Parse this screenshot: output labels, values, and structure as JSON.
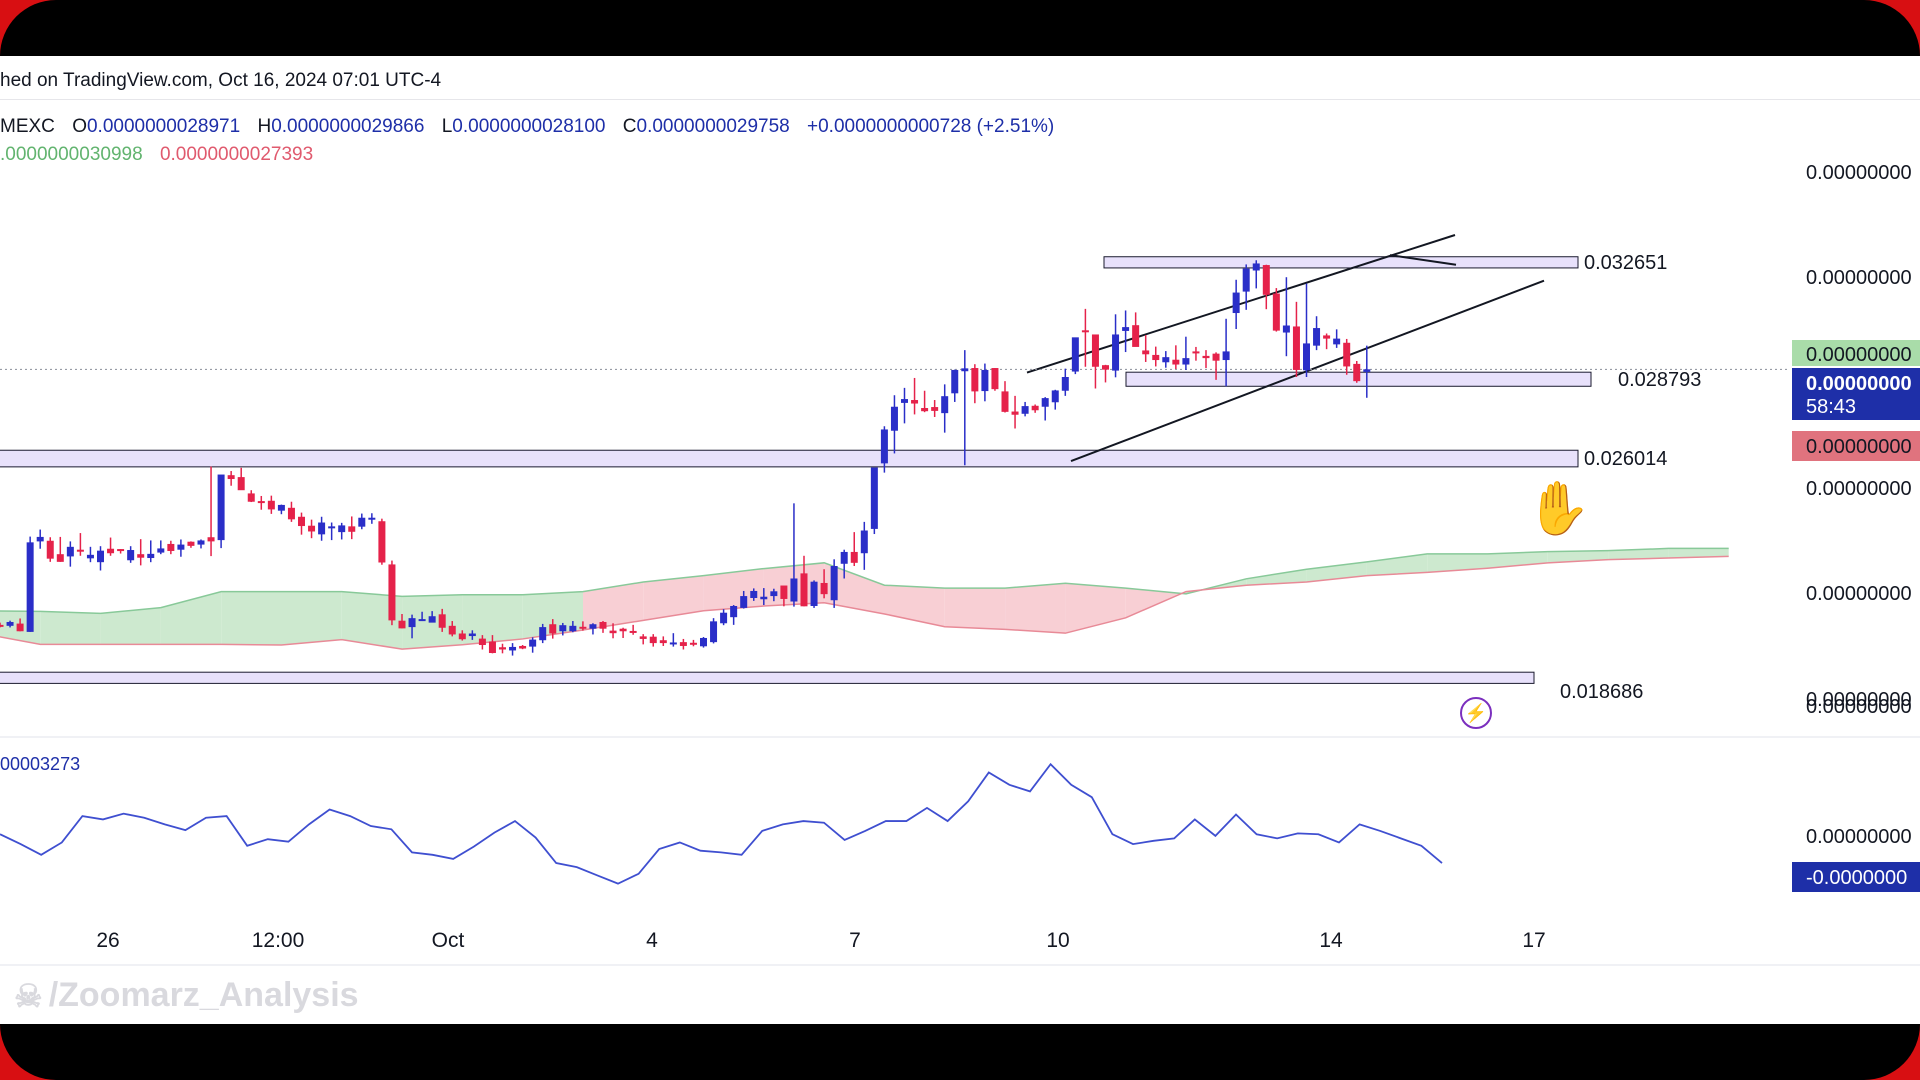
{
  "header": {
    "published_text": "hed on TradingView.com, Oct 16, 2024 07:01 UTC-4"
  },
  "ohlc": {
    "exchange": "MEXC",
    "open_label": "O",
    "open": "0.0000000028971",
    "high_label": "H",
    "high": "0.0000000029866",
    "low_label": "L",
    "low": "0.0000000028100",
    "close_label": "C",
    "close": "0.0000000029758",
    "change": "+0.0000000000728 (+2.51%)"
  },
  "indicator": {
    "value_green": ".0000000030998",
    "value_red": "0.0000000027393"
  },
  "oscillator": {
    "label": "00003273"
  },
  "watermark": {
    "text": "/Zoomarz_Analysis",
    "icon": "skull-icon"
  },
  "colors": {
    "bull": "#2a2ec8",
    "bear": "#e5224a",
    "zone_fill": "#e2d9fa",
    "zone_stroke": "#1a1a2e",
    "cloud_green": "#cde9cf",
    "cloud_red": "#f8cfd4",
    "line_green": "#88c999",
    "line_red": "#e88a97",
    "osc_line": "#3f4fd0",
    "price_axis_blue": "#1e2fa8",
    "price_axis_red": "#e0737e",
    "price_axis_green": "#a9dca9"
  },
  "chart_data": {
    "type": "candlestick",
    "x_ticks": [
      "26",
      "12:00",
      "Oct",
      "4",
      "7",
      "10",
      "14",
      "17"
    ],
    "level_labels": [
      "0.032651",
      "0.028793",
      "0.026014",
      "0.018686"
    ],
    "levels": [
      0.032651,
      0.028793,
      0.026014,
      0.018686
    ],
    "price_axis_labels": [
      "0.00000000",
      "0.00000000",
      "0.00000000",
      "0.00000000",
      "0.00000000",
      "0.00000000"
    ],
    "price_tags": [
      {
        "text": "0.00000000",
        "style": "green"
      },
      {
        "text": "0.00000000",
        "style": "blue"
      },
      {
        "text": "58:43",
        "style": "blue"
      },
      {
        "text": "0.00000000",
        "style": "red"
      }
    ],
    "osc_axis_labels": [
      "0.00000000",
      "-0.0000000"
    ],
    "candles": [
      [
        0.02106,
        0.02113,
        0.02098,
        0.02103
      ],
      [
        0.02103,
        0.02119,
        0.02098,
        0.02115
      ],
      [
        0.0211,
        0.02126,
        0.02086,
        0.02086
      ],
      [
        0.02084,
        0.02382,
        0.02084,
        0.02364
      ],
      [
        0.02367,
        0.02404,
        0.02344,
        0.02381
      ],
      [
        0.02369,
        0.0238,
        0.02303,
        0.02313
      ],
      [
        0.02327,
        0.02381,
        0.02303,
        0.02303
      ],
      [
        0.0232,
        0.02367,
        0.02288,
        0.0235
      ],
      [
        0.02341,
        0.02393,
        0.02322,
        0.02336
      ],
      [
        0.02314,
        0.0235,
        0.02302,
        0.02325
      ],
      [
        0.02302,
        0.02352,
        0.02276,
        0.02338
      ],
      [
        0.02344,
        0.02379,
        0.02322,
        0.0233
      ],
      [
        0.02343,
        0.02343,
        0.02329,
        0.02339
      ],
      [
        0.02308,
        0.02352,
        0.023,
        0.0234
      ],
      [
        0.02327,
        0.02374,
        0.02292,
        0.02316
      ],
      [
        0.02315,
        0.0237,
        0.02302,
        0.02328
      ],
      [
        0.02332,
        0.0237,
        0.02327,
        0.02345
      ],
      [
        0.02359,
        0.02369,
        0.02327,
        0.02337
      ],
      [
        0.02341,
        0.02373,
        0.02319,
        0.02357
      ],
      [
        0.02366,
        0.02367,
        0.02347,
        0.02353
      ],
      [
        0.02357,
        0.02373,
        0.02345,
        0.0237
      ],
      [
        0.0238,
        0.02601,
        0.02321,
        0.02367
      ],
      [
        0.02371,
        0.0257,
        0.02346,
        0.02576
      ],
      [
        0.02574,
        0.02587,
        0.02541,
        0.02562
      ],
      [
        0.02568,
        0.02597,
        0.02537,
        0.02527
      ],
      [
        0.02517,
        0.02527,
        0.0249,
        0.02491
      ],
      [
        0.02493,
        0.02509,
        0.02466,
        0.02487
      ],
      [
        0.02494,
        0.0251,
        0.02453,
        0.02467
      ],
      [
        0.02463,
        0.02482,
        0.02452,
        0.02481
      ],
      [
        0.02472,
        0.02491,
        0.02428,
        0.02436
      ],
      [
        0.02444,
        0.02457,
        0.02388,
        0.02415
      ],
      [
        0.02416,
        0.02435,
        0.02377,
        0.02398
      ],
      [
        0.02389,
        0.02444,
        0.02369,
        0.02426
      ],
      [
        0.0241,
        0.02426,
        0.02371,
        0.02414
      ],
      [
        0.02396,
        0.02425,
        0.02373,
        0.02417
      ],
      [
        0.02414,
        0.02445,
        0.02374,
        0.02397
      ],
      [
        0.02413,
        0.02454,
        0.02405,
        0.02441
      ],
      [
        0.02437,
        0.02455,
        0.02422,
        0.02441
      ],
      [
        0.0243,
        0.02438,
        0.02294,
        0.02301
      ],
      [
        0.02295,
        0.02307,
        0.02105,
        0.0212
      ],
      [
        0.02119,
        0.0214,
        0.02095,
        0.02095
      ],
      [
        0.02099,
        0.02138,
        0.02064,
        0.02127
      ],
      [
        0.02123,
        0.02147,
        0.02118,
        0.02124
      ],
      [
        0.02113,
        0.02149,
        0.02118,
        0.02133
      ],
      [
        0.02139,
        0.02156,
        0.02084,
        0.02097
      ],
      [
        0.02103,
        0.02118,
        0.0207,
        0.02076
      ],
      [
        0.02079,
        0.02089,
        0.02057,
        0.02061
      ],
      [
        0.02071,
        0.02089,
        0.02059,
        0.02079
      ],
      [
        0.02063,
        0.02074,
        0.02029,
        0.02043
      ],
      [
        0.02054,
        0.02074,
        0.02017,
        0.02018
      ],
      [
        0.02036,
        0.02047,
        0.02017,
        0.02029
      ],
      [
        0.02026,
        0.02049,
        0.0201,
        0.02037
      ],
      [
        0.0204,
        0.02043,
        0.0203,
        0.02032
      ],
      [
        0.02038,
        0.02067,
        0.02019,
        0.0206
      ],
      [
        0.02058,
        0.02109,
        0.02049,
        0.02099
      ],
      [
        0.02108,
        0.02124,
        0.02063,
        0.02079
      ],
      [
        0.02086,
        0.02112,
        0.02073,
        0.02105
      ],
      [
        0.02086,
        0.02118,
        0.02083,
        0.02103
      ],
      [
        0.021,
        0.02117,
        0.02088,
        0.02096
      ],
      [
        0.02094,
        0.02111,
        0.02076,
        0.02108
      ],
      [
        0.02115,
        0.02118,
        0.02081,
        0.02094
      ],
      [
        0.02088,
        0.02111,
        0.02064,
        0.0208
      ],
      [
        0.02094,
        0.02097,
        0.02065,
        0.02086
      ],
      [
        0.02087,
        0.02106,
        0.02075,
        0.02083
      ],
      [
        0.0207,
        0.02077,
        0.02045,
        0.02062
      ],
      [
        0.02069,
        0.02077,
        0.02038,
        0.02049
      ],
      [
        0.02058,
        0.0207,
        0.0204,
        0.02049
      ],
      [
        0.02048,
        0.0208,
        0.02038,
        0.02051
      ],
      [
        0.02052,
        0.02062,
        0.02029,
        0.0204
      ],
      [
        0.0205,
        0.02059,
        0.02039,
        0.02047
      ],
      [
        0.02039,
        0.02068,
        0.02035,
        0.02065
      ],
      [
        0.02052,
        0.02127,
        0.02048,
        0.02117
      ],
      [
        0.02111,
        0.02155,
        0.02105,
        0.02144
      ],
      [
        0.0213,
        0.02168,
        0.02106,
        0.02165
      ],
      [
        0.02159,
        0.02212,
        0.02157,
        0.02196
      ],
      [
        0.0219,
        0.0222,
        0.02181,
        0.02212
      ],
      [
        0.02186,
        0.02221,
        0.02168,
        0.02194
      ],
      [
        0.02196,
        0.02219,
        0.0218,
        0.02211
      ],
      [
        0.02229,
        0.02224,
        0.02164,
        0.02187
      ],
      [
        0.02179,
        0.02486,
        0.02163,
        0.02251
      ],
      [
        0.02267,
        0.02322,
        0.02164,
        0.02164
      ],
      [
        0.02165,
        0.02245,
        0.02159,
        0.02241
      ],
      [
        0.02237,
        0.0228,
        0.02189,
        0.02202
      ],
      [
        0.02183,
        0.02311,
        0.02159,
        0.0229
      ],
      [
        0.02297,
        0.02341,
        0.02251,
        0.02334
      ],
      [
        0.02334,
        0.02396,
        0.0229,
        0.023
      ],
      [
        0.0233,
        0.02428,
        0.02278,
        0.02401
      ],
      [
        0.02406,
        0.02591,
        0.0239,
        0.02598
      ],
      [
        0.02611,
        0.02727,
        0.02582,
        0.02717
      ],
      [
        0.02713,
        0.02824,
        0.02642,
        0.02788
      ],
      [
        0.028,
        0.02847,
        0.02736,
        0.02812
      ],
      [
        0.02809,
        0.02878,
        0.02764,
        0.02798
      ],
      [
        0.02784,
        0.02838,
        0.02771,
        0.02774
      ],
      [
        0.02787,
        0.02809,
        0.02756,
        0.02775
      ],
      [
        0.02768,
        0.02858,
        0.02707,
        0.02821
      ],
      [
        0.0283,
        0.02904,
        0.02803,
        0.02903
      ],
      [
        0.02899,
        0.02965,
        0.02605,
        0.02908
      ],
      [
        0.02909,
        0.02921,
        0.02799,
        0.02836
      ],
      [
        0.02837,
        0.02923,
        0.02805,
        0.02903
      ],
      [
        0.02909,
        0.02909,
        0.02838,
        0.02843
      ],
      [
        0.02836,
        0.02868,
        0.0277,
        0.02772
      ],
      [
        0.02773,
        0.02822,
        0.0272,
        0.02763
      ],
      [
        0.02766,
        0.02803,
        0.02758,
        0.0279
      ],
      [
        0.02791,
        0.02795,
        0.02769,
        0.02777
      ],
      [
        0.02788,
        0.02818,
        0.02745,
        0.02815
      ],
      [
        0.02802,
        0.02841,
        0.02779,
        0.02839
      ],
      [
        0.02838,
        0.02907,
        0.02822,
        0.02881
      ],
      [
        0.02898,
        0.02989,
        0.0289,
        0.03005
      ],
      [
        0.03027,
        0.03094,
        0.02913,
        0.03021
      ],
      [
        0.03014,
        0.0301,
        0.02845,
        0.02913
      ],
      [
        0.02918,
        0.02919,
        0.02864,
        0.02904
      ],
      [
        0.02901,
        0.03077,
        0.0288,
        0.03014
      ],
      [
        0.03025,
        0.03089,
        0.02959,
        0.03037
      ],
      [
        0.03043,
        0.03083,
        0.02992,
        0.02975
      ],
      [
        0.02964,
        0.03012,
        0.02928,
        0.02952
      ],
      [
        0.0295,
        0.02976,
        0.02914,
        0.02934
      ],
      [
        0.02927,
        0.02962,
        0.0291,
        0.02943
      ],
      [
        0.02935,
        0.0298,
        0.02906,
        0.0292
      ],
      [
        0.0292,
        0.03007,
        0.02903,
        0.0294
      ],
      [
        0.02961,
        0.02975,
        0.02932,
        0.02955
      ],
      [
        0.02947,
        0.02965,
        0.02909,
        0.0294
      ],
      [
        0.02954,
        0.02958,
        0.02872,
        0.02932
      ],
      [
        0.02934,
        0.03063,
        0.02852,
        0.02961
      ],
      [
        0.03081,
        0.03185,
        0.03031,
        0.03145
      ],
      [
        0.03148,
        0.03233,
        0.03091,
        0.0322
      ],
      [
        0.03214,
        0.03246,
        0.03158,
        0.03236
      ],
      [
        0.03231,
        0.03232,
        0.03093,
        0.03138
      ],
      [
        0.03142,
        0.03159,
        0.03023,
        0.03026
      ],
      [
        0.0302,
        0.03193,
        0.02946,
        0.03042
      ],
      [
        0.03039,
        0.03116,
        0.02881,
        0.02903
      ],
      [
        0.02902,
        0.03173,
        0.02881,
        0.02986
      ],
      [
        0.02979,
        0.03071,
        0.02965,
        0.03034
      ],
      [
        0.03011,
        0.03017,
        0.02968,
        0.03001
      ],
      [
        0.02983,
        0.0303,
        0.02972,
        0.03001
      ],
      [
        0.02988,
        0.03,
        0.02888,
        0.02914
      ],
      [
        0.02922,
        0.02931,
        0.02863,
        0.02868
      ],
      [
        0.02897,
        0.02979,
        0.02816,
        0.02905
      ]
    ],
    "ichimoku_top": [
      0.0215,
      0.02148,
      0.02142,
      0.0216,
      0.0221,
      0.0221,
      0.0221,
      0.02195,
      0.022,
      0.022,
      0.0221,
      0.0224,
      0.0226,
      0.02282,
      0.023,
      0.0223,
      0.02221,
      0.02221,
      0.02236,
      0.02221,
      0.02203,
      0.0225,
      0.0228,
      0.02303,
      0.02328,
      0.02328,
      0.02335,
      0.02338,
      0.02345,
      0.02345
    ],
    "ichimoku_bottom": [
      0.0208,
      0.02045,
      0.02045,
      0.02045,
      0.02045,
      0.02043,
      0.0206,
      0.0203,
      0.02044,
      0.02062,
      0.0209,
      0.0212,
      0.0215,
      0.02165,
      0.02175,
      0.0214,
      0.021,
      0.02092,
      0.0208,
      0.02128,
      0.0221,
      0.0223,
      0.0224,
      0.0226,
      0.0227,
      0.02283,
      0.023,
      0.0231,
      0.02315,
      0.0232
    ],
    "oscillator_values": [
      0.2,
      0.08,
      -0.05,
      0.1,
      0.42,
      0.38,
      0.45,
      0.4,
      0.32,
      0.25,
      0.4,
      0.42,
      0.06,
      0.14,
      0.11,
      0.32,
      0.5,
      0.42,
      0.3,
      0.26,
      -0.02,
      -0.05,
      -0.1,
      0.05,
      0.22,
      0.36,
      0.16,
      -0.15,
      -0.2,
      -0.3,
      -0.4,
      -0.28,
      0.02,
      0.1,
      0.0,
      -0.02,
      -0.05,
      0.24,
      0.32,
      0.36,
      0.34,
      0.13,
      0.24,
      0.36,
      0.36,
      0.52,
      0.36,
      0.6,
      0.95,
      0.8,
      0.72,
      1.05,
      0.8,
      0.65,
      0.2,
      0.08,
      0.12,
      0.15,
      0.38,
      0.18,
      0.44,
      0.2,
      0.15,
      0.21,
      0.2,
      0.1,
      0.32,
      0.24,
      0.15,
      0.06,
      -0.15
    ],
    "y_range": [
      0.01721,
      0.03622
    ],
    "osc_range": [
      -0.55,
      1.15
    ]
  }
}
